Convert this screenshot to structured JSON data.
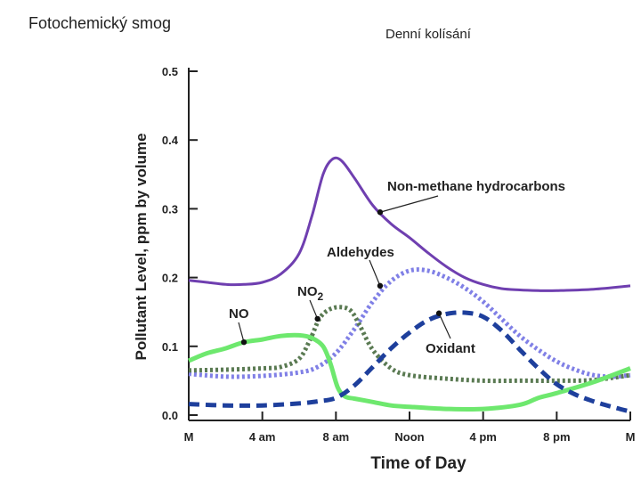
{
  "header": {
    "title_left": "Fotochemický smog",
    "title_right": "Denní kolísání"
  },
  "chart_data": {
    "type": "line",
    "xlabel": "Time of Day",
    "ylabel": "Pollutant Level, ppm by volume",
    "x_tick_labels": [
      "M",
      "4 am",
      "8 am",
      "Noon",
      "4 pm",
      "8 pm",
      "M"
    ],
    "x_tick_hours": [
      0,
      4,
      8,
      12,
      16,
      20,
      24
    ],
    "xlim": [
      0,
      24
    ],
    "y_ticks": [
      "0.0",
      "0.1",
      "0.2",
      "0.3",
      "0.4",
      "0.5"
    ],
    "y_tick_values": [
      0.0,
      0.1,
      0.2,
      0.3,
      0.4,
      0.5
    ],
    "ylim": [
      0,
      0.5
    ],
    "grid": false,
    "series": [
      {
        "name": "Non-methane hydrocarbons",
        "color": "#6f3fb0",
        "style": "solid",
        "points": [
          [
            0,
            0.196
          ],
          [
            1,
            0.193
          ],
          [
            2,
            0.19
          ],
          [
            3,
            0.19
          ],
          [
            4,
            0.193
          ],
          [
            5,
            0.205
          ],
          [
            6,
            0.235
          ],
          [
            6.7,
            0.29
          ],
          [
            7.3,
            0.35
          ],
          [
            7.8,
            0.372
          ],
          [
            8.3,
            0.37
          ],
          [
            9,
            0.345
          ],
          [
            10,
            0.305
          ],
          [
            11,
            0.278
          ],
          [
            12,
            0.258
          ],
          [
            13,
            0.236
          ],
          [
            14,
            0.216
          ],
          [
            15,
            0.2
          ],
          [
            16,
            0.19
          ],
          [
            17,
            0.184
          ],
          [
            18,
            0.182
          ],
          [
            19,
            0.181
          ],
          [
            20,
            0.181
          ],
          [
            22,
            0.183
          ],
          [
            24,
            0.188
          ]
        ]
      },
      {
        "name": "Aldehydes",
        "color": "#8080e6",
        "style": "dotted",
        "points": [
          [
            0,
            0.06
          ],
          [
            2,
            0.056
          ],
          [
            4,
            0.057
          ],
          [
            6,
            0.062
          ],
          [
            7,
            0.07
          ],
          [
            8,
            0.09
          ],
          [
            9,
            0.125
          ],
          [
            10,
            0.165
          ],
          [
            11,
            0.195
          ],
          [
            12,
            0.21
          ],
          [
            13,
            0.21
          ],
          [
            14,
            0.2
          ],
          [
            15,
            0.185
          ],
          [
            16,
            0.165
          ],
          [
            17,
            0.14
          ],
          [
            18,
            0.115
          ],
          [
            19,
            0.095
          ],
          [
            20,
            0.078
          ],
          [
            21,
            0.066
          ],
          [
            22,
            0.058
          ],
          [
            23,
            0.056
          ],
          [
            24,
            0.058
          ]
        ]
      },
      {
        "name": "NO₂",
        "color": "#5a7a52",
        "style": "dotted",
        "points": [
          [
            0,
            0.065
          ],
          [
            2,
            0.066
          ],
          [
            4,
            0.068
          ],
          [
            5,
            0.07
          ],
          [
            6,
            0.082
          ],
          [
            6.6,
            0.11
          ],
          [
            7.1,
            0.14
          ],
          [
            7.6,
            0.153
          ],
          [
            8.2,
            0.157
          ],
          [
            8.8,
            0.152
          ],
          [
            9.3,
            0.13
          ],
          [
            10,
            0.095
          ],
          [
            11,
            0.068
          ],
          [
            12,
            0.058
          ],
          [
            14,
            0.053
          ],
          [
            16,
            0.05
          ],
          [
            18,
            0.05
          ],
          [
            20,
            0.05
          ],
          [
            22,
            0.051
          ],
          [
            24,
            0.058
          ]
        ]
      },
      {
        "name": "NO",
        "color": "#6ee86e",
        "style": "solid",
        "points": [
          [
            0,
            0.079
          ],
          [
            1,
            0.09
          ],
          [
            2,
            0.097
          ],
          [
            3,
            0.106
          ],
          [
            4,
            0.11
          ],
          [
            5,
            0.115
          ],
          [
            6,
            0.116
          ],
          [
            6.7,
            0.112
          ],
          [
            7.3,
            0.1
          ],
          [
            7.7,
            0.075
          ],
          [
            8.1,
            0.04
          ],
          [
            8.5,
            0.027
          ],
          [
            9,
            0.024
          ],
          [
            10,
            0.019
          ],
          [
            11,
            0.014
          ],
          [
            12,
            0.012
          ],
          [
            14,
            0.009
          ],
          [
            16,
            0.009
          ],
          [
            18,
            0.015
          ],
          [
            19,
            0.025
          ],
          [
            20,
            0.032
          ],
          [
            22,
            0.048
          ],
          [
            24,
            0.068
          ]
        ]
      },
      {
        "name": "Oxidant",
        "color": "#1e3f9c",
        "style": "dashed",
        "points": [
          [
            0,
            0.016
          ],
          [
            2,
            0.014
          ],
          [
            4,
            0.014
          ],
          [
            6,
            0.017
          ],
          [
            7,
            0.02
          ],
          [
            8,
            0.025
          ],
          [
            9,
            0.043
          ],
          [
            10,
            0.07
          ],
          [
            11,
            0.097
          ],
          [
            12,
            0.12
          ],
          [
            13,
            0.138
          ],
          [
            14,
            0.147
          ],
          [
            15,
            0.149
          ],
          [
            16,
            0.143
          ],
          [
            17,
            0.123
          ],
          [
            18,
            0.095
          ],
          [
            19,
            0.068
          ],
          [
            20,
            0.045
          ],
          [
            21,
            0.03
          ],
          [
            22,
            0.02
          ],
          [
            23,
            0.012
          ],
          [
            24,
            0.005
          ]
        ]
      }
    ],
    "annotations": [
      {
        "text": "Non-methane hydrocarbons",
        "series": "Non-methane hydrocarbons",
        "x": 10.4,
        "y": 0.295
      },
      {
        "text": "Aldehydes",
        "series": "Aldehydes",
        "x": 10.4,
        "y": 0.188
      },
      {
        "text": "NO",
        "sub": "2",
        "series": "NO₂",
        "x": 7.0,
        "y": 0.14
      },
      {
        "text": "NO",
        "series": "NO",
        "x": 3.0,
        "y": 0.106
      },
      {
        "text": "Oxidant",
        "series": "Oxidant",
        "x": 13.6,
        "y": 0.148
      }
    ]
  }
}
